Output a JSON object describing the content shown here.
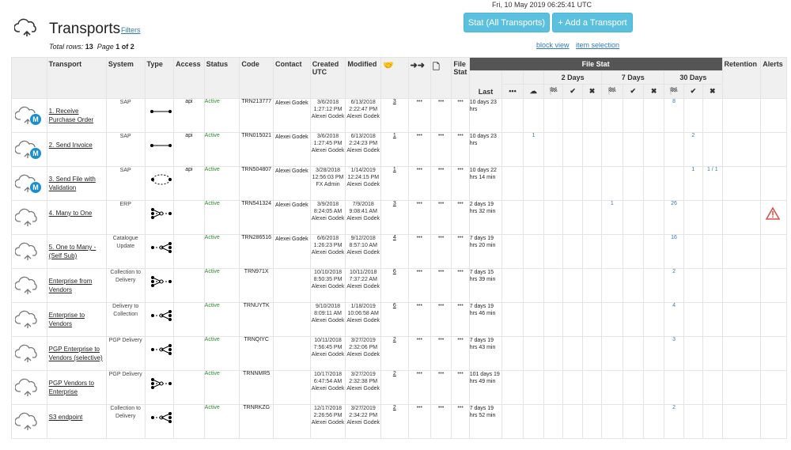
{
  "header": {
    "datetime": "Fri, 10 May 2019 06:25:41 UTC",
    "title": "Transports",
    "filters_label": "Filters",
    "total_rows_label": "Total rows:",
    "total_rows": "13",
    "page_label": "Page",
    "page": "1 of 2",
    "stat_button": "Stat (All Transports)",
    "add_button": "+ Add a Transport",
    "block_view": "block view",
    "item_selection": "item selection"
  },
  "columns": {
    "transport": "Transport",
    "system": "System",
    "type": "Type",
    "access": "Access",
    "status": "Status",
    "code": "Code",
    "contact": "Contact",
    "created": "Created UTC",
    "modified": "Modified",
    "handshake": "🤝",
    "arrows": "➜➜",
    "doc": "🗋",
    "file_stat_col": "File Stat",
    "file_stat_group": "File Stat",
    "retention": "Retention",
    "alerts": "Alerts",
    "last": "Last",
    "dots": "•••",
    "two_days": "2 Days",
    "seven_days": "7 Days",
    "thirty_days": "30 Days",
    "flag": "🏁",
    "check": "✔",
    "cross": "✖"
  },
  "rows": [
    {
      "name": "1. Receive Purchase Order",
      "system": "SAP",
      "access": "api",
      "status": "Active",
      "code": "TRN213777",
      "contact": "Alexei Godek",
      "created": "3/6/2018 1:27:12 PM Alexei Godek",
      "modified": "6/13/2018 2:22:47 PM Alexei Godek",
      "count": "3",
      "last": "10 days 23 hrs",
      "d2": [
        "",
        "",
        "",
        "",
        ""
      ],
      "d7": [
        "",
        "",
        ""
      ],
      "d30": [
        "8",
        "",
        ""
      ],
      "badge": true,
      "type": "line"
    },
    {
      "name": "2. Send Invoice",
      "system": "SAP",
      "access": "api",
      "status": "Active",
      "code": "TRN015021",
      "contact": "Alexei Godek",
      "created": "3/6/2018 1:27:45 PM Alexei Godek",
      "modified": "6/13/2018 2:24:23 PM Alexei Godek",
      "count": "1",
      "last": "10 days 23 hrs",
      "d2": [
        "",
        "1",
        "",
        "",
        ""
      ],
      "d7": [
        "",
        "",
        ""
      ],
      "d30": [
        "",
        "2",
        ""
      ],
      "badge": true,
      "type": "line"
    },
    {
      "name": "3. Send File with Validation",
      "system": "SAP",
      "access": "api",
      "status": "Active",
      "code": "TRN504807",
      "contact": "Alexei Godek",
      "created": "3/28/2018 12:56:03 PM FX Admin",
      "modified": "1/14/2019 12:24:15 PM Alexei Godek",
      "count": "1",
      "last": "10 days 22 hrs 14 min",
      "d2": [
        "",
        "",
        "",
        "",
        ""
      ],
      "d7": [
        "",
        "",
        ""
      ],
      "d30": [
        "",
        "1",
        "1 / 1"
      ],
      "badge": true,
      "type": "loop"
    },
    {
      "name": "4. Many to One",
      "system": "ERP",
      "access": "",
      "status": "Active",
      "code": "TRN541324",
      "contact": "Alexei Godek",
      "created": "3/9/2018 8:24:05 AM Alexei Godek",
      "modified": "7/9/2018 9:08:41 AM Alexei Godek",
      "count": "3",
      "last": "2 days 19 hrs 32 min",
      "d2": [
        "",
        "",
        "",
        "",
        ""
      ],
      "d7": [
        "1",
        "",
        ""
      ],
      "d30": [
        "26",
        "",
        ""
      ],
      "badge": false,
      "type": "many",
      "alert": true
    },
    {
      "name": "5. One to Many - (Self Sub)",
      "system": "Catalogue Update",
      "access": "",
      "status": "Active",
      "code": "TRN286516",
      "contact": "Alexei Godek",
      "created": "6/6/2018 1:26:23 PM Alexei Godek",
      "modified": "9/12/2018 8:57:10 AM Alexei Godek",
      "count": "4",
      "last": "7 days 19 hrs 20 min",
      "d2": [
        "",
        "",
        "",
        "",
        ""
      ],
      "d7": [
        "",
        "",
        ""
      ],
      "d30": [
        "16",
        "",
        ""
      ],
      "badge": false,
      "type": "one"
    },
    {
      "name": "Enterprise from Vendors",
      "system": "Collection to Delivery",
      "access": "",
      "status": "Active",
      "code": "TRN971X",
      "contact": "",
      "created": "10/10/2018 8:50:35 PM Alexei Godek",
      "modified": "10/11/2018 7:37:22 AM Alexei Godek",
      "count": "6",
      "last": "7 days 15 hrs 39 min",
      "d2": [
        "",
        "",
        "",
        "",
        ""
      ],
      "d7": [
        "",
        "",
        ""
      ],
      "d30": [
        "2",
        "",
        ""
      ],
      "badge": false,
      "type": "many"
    },
    {
      "name": "Enterprise to Vendors",
      "system": "Delivery to Collection",
      "access": "",
      "status": "Active",
      "code": "TRNUYTK",
      "contact": "",
      "created": "9/10/2018 8:09:11 AM Alexei Godek",
      "modified": "1/18/2019 10:06:58 AM Alexei Godek",
      "count": "6",
      "last": "7 days 19 hrs 46 min",
      "d2": [
        "",
        "",
        "",
        "",
        ""
      ],
      "d7": [
        "",
        "",
        ""
      ],
      "d30": [
        "4",
        "",
        ""
      ],
      "badge": false,
      "type": "one"
    },
    {
      "name": "PGP Enterprise to Vendors (selective)",
      "system": "PGP Delivery",
      "access": "",
      "status": "Active",
      "code": "TRNQIYC",
      "contact": "",
      "created": "10/11/2018 7:56:45 PM Alexei Godek",
      "modified": "3/27/2019 2:32:06 PM Alexei Godek",
      "count": "2",
      "last": "7 days 19 hrs 43 min",
      "d2": [
        "",
        "",
        "",
        "",
        ""
      ],
      "d7": [
        "",
        "",
        ""
      ],
      "d30": [
        "3",
        "",
        ""
      ],
      "badge": false,
      "type": "one"
    },
    {
      "name": "PGP Vendors to Enterprise",
      "system": "PGP Delivery",
      "access": "",
      "status": "Active",
      "code": "TRNNMR5",
      "contact": "",
      "created": "10/17/2018 6:47:54 AM Alexei Godek",
      "modified": "3/27/2019 2:32:38 PM Alexei Godek",
      "count": "2",
      "last": "101 days 19 hrs 49 min",
      "d2": [
        "",
        "",
        "",
        "",
        ""
      ],
      "d7": [
        "",
        "",
        ""
      ],
      "d30": [
        "",
        "",
        ""
      ],
      "badge": false,
      "type": "many"
    },
    {
      "name": "S3 endpoint",
      "system": "Collection to Delivery",
      "access": "",
      "status": "Active",
      "code": "TRNRKZG",
      "contact": "",
      "created": "12/17/2018 2:26:56 PM Alexei Godek",
      "modified": "3/27/2019 2:34:22 PM Alexei Godek",
      "count": "2",
      "last": "7 days 19 hrs 52 min",
      "d2": [
        "",
        "",
        "",
        "",
        ""
      ],
      "d7": [
        "",
        "",
        ""
      ],
      "d30": [
        "2",
        "",
        ""
      ],
      "badge": false,
      "type": "one"
    }
  ]
}
